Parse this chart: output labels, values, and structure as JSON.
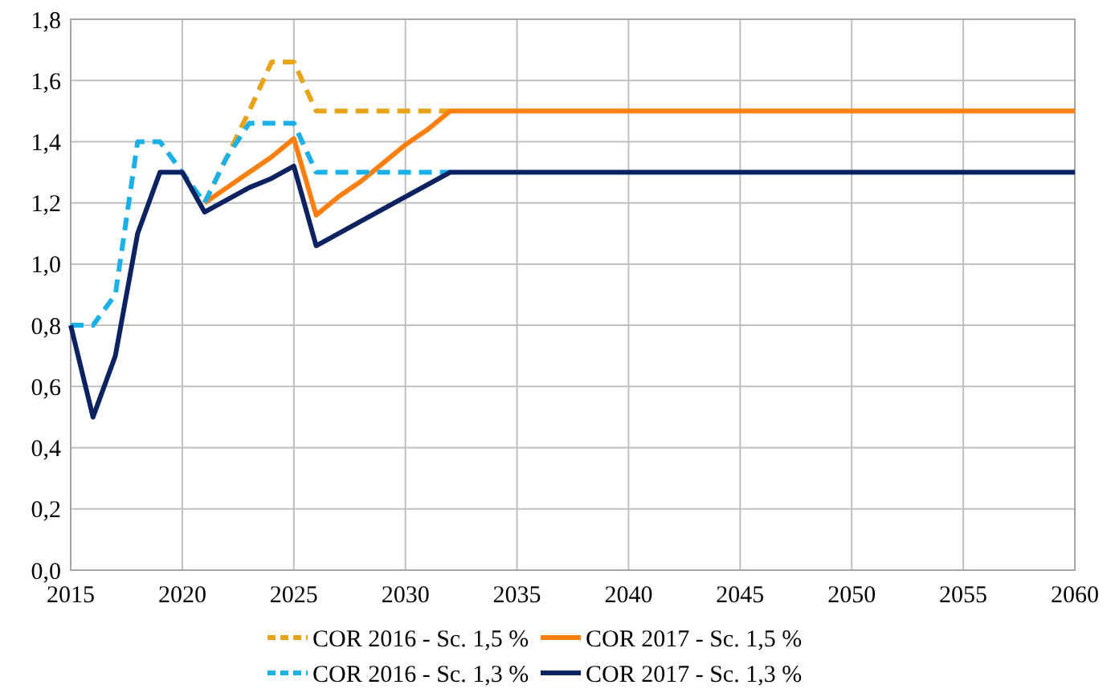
{
  "chart_data": {
    "type": "line",
    "xlim": [
      2015,
      2060
    ],
    "xticks": [
      2015,
      2020,
      2025,
      2030,
      2035,
      2040,
      2045,
      2050,
      2055,
      2060
    ],
    "ylim": [
      0,
      1.8
    ],
    "yticks": [
      {
        "value": 0,
        "label": "0,0"
      },
      {
        "value": 0.2,
        "label": "0,2"
      },
      {
        "value": 0.4,
        "label": "0,4"
      },
      {
        "value": 0.6,
        "label": "0,6"
      },
      {
        "value": 0.8,
        "label": "0,8"
      },
      {
        "value": 1,
        "label": "1,0"
      },
      {
        "value": 1.2,
        "label": "1,2"
      },
      {
        "value": 1.4,
        "label": "1,4"
      },
      {
        "value": 1.6,
        "label": "1,6"
      },
      {
        "value": 1.8,
        "label": "1,8"
      }
    ],
    "grid": true,
    "legend": "bottom",
    "series": [
      {
        "name": "COR 2016 - Sc. 1,5 %",
        "color": "#e8a317",
        "line_style": "dashed",
        "x": [
          2021,
          2022,
          2023,
          2024,
          2025,
          2026,
          2032
        ],
        "values": [
          1.2,
          1.35,
          1.5,
          1.66,
          1.66,
          1.5,
          1.5
        ]
      },
      {
        "name": "COR 2017 - Sc. 1,5 %",
        "color": "#ff7f0e",
        "line_style": "solid",
        "x": [
          2021,
          2022,
          2023,
          2024,
          2025,
          2026,
          2027,
          2028,
          2029,
          2030,
          2031,
          2032,
          2060
        ],
        "values": [
          1.2,
          1.25,
          1.3,
          1.35,
          1.41,
          1.16,
          1.22,
          1.27,
          1.33,
          1.39,
          1.44,
          1.5,
          1.5
        ]
      },
      {
        "name": "COR 2016 - Sc. 1,3 %",
        "color": "#1ab0e8",
        "line_style": "dashed",
        "x": [
          2015,
          2016,
          2017,
          2018,
          2019,
          2020,
          2021,
          2022,
          2023,
          2024,
          2025,
          2026,
          2032
        ],
        "values": [
          0.8,
          0.8,
          0.9,
          1.4,
          1.4,
          1.3,
          1.2,
          1.35,
          1.46,
          1.46,
          1.46,
          1.3,
          1.3
        ]
      },
      {
        "name": "COR 2017 - Sc. 1,3 %",
        "color": "#0d2260",
        "line_style": "solid",
        "x": [
          2015,
          2016,
          2017,
          2018,
          2019,
          2020,
          2021,
          2022,
          2023,
          2024,
          2025,
          2026,
          2032,
          2060
        ],
        "values": [
          0.8,
          0.5,
          0.7,
          1.1,
          1.3,
          1.3,
          1.17,
          1.21,
          1.25,
          1.28,
          1.32,
          1.06,
          1.3,
          1.3
        ]
      }
    ]
  }
}
